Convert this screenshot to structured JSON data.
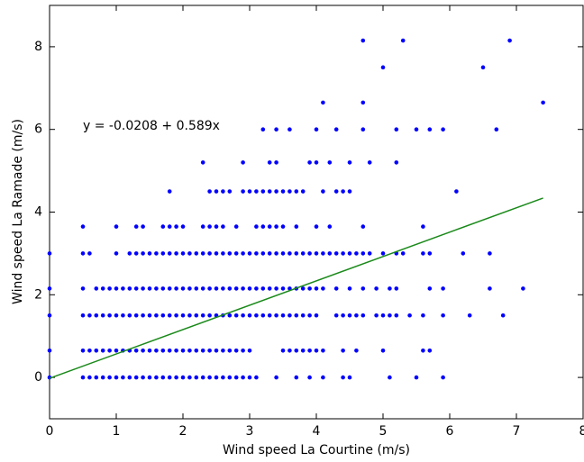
{
  "chart_data": {
    "type": "scatter",
    "xlabel": "Wind speed La Courtine (m/s)",
    "ylabel": "Wind speed La Ramade (m/s)",
    "annotation": "y = -0.0208 + 0.589x",
    "xlim": [
      0,
      8
    ],
    "ylim": [
      -1,
      9
    ],
    "xticks": [
      0,
      1,
      2,
      3,
      4,
      5,
      6,
      7,
      8
    ],
    "yticks": [
      0,
      2,
      4,
      6,
      8
    ],
    "color": "#0000ff",
    "x": [
      0,
      0.5,
      0.6,
      0.7,
      0.8,
      0.9,
      1,
      1.1,
      1.2,
      1.3,
      1.4,
      1.5,
      1.6,
      1.7,
      1.8,
      1.9,
      2,
      2.1,
      2.2,
      2.3,
      2.4,
      2.5,
      2.6,
      2.7,
      2.8,
      2.9,
      3,
      3.1,
      3.4,
      3.7,
      3.9,
      4.1,
      4.4,
      4.5,
      5.1,
      5.5,
      5.9,
      0,
      0.5,
      0.6,
      0.7,
      0.8,
      0.9,
      1,
      1.1,
      1.2,
      1.3,
      1.4,
      1.5,
      1.6,
      1.7,
      1.8,
      1.9,
      2,
      2.1,
      2.2,
      2.3,
      2.4,
      2.5,
      2.6,
      2.7,
      2.8,
      2.9,
      3,
      3.5,
      3.6,
      3.7,
      3.8,
      3.9,
      4,
      4.1,
      4.4,
      4.6,
      5,
      5.6,
      5.7,
      0,
      0.5,
      0.6,
      0.7,
      0.8,
      0.9,
      1,
      1.1,
      1.2,
      1.3,
      1.4,
      1.5,
      1.6,
      1.7,
      1.8,
      1.9,
      2,
      2.1,
      2.2,
      2.3,
      2.4,
      2.5,
      2.6,
      2.7,
      2.8,
      2.9,
      3,
      3.1,
      3.2,
      3.3,
      3.4,
      3.5,
      3.6,
      3.7,
      3.8,
      3.9,
      4,
      4.3,
      4.4,
      4.5,
      4.6,
      4.7,
      4.9,
      5,
      5.1,
      5.2,
      5.4,
      5.6,
      5.9,
      6.3,
      6.8,
      0,
      0.5,
      0.7,
      0.8,
      0.9,
      1,
      1.1,
      1.2,
      1.3,
      1.4,
      1.5,
      1.6,
      1.7,
      1.8,
      1.9,
      2,
      2.1,
      2.2,
      2.3,
      2.4,
      2.5,
      2.6,
      2.7,
      2.8,
      2.9,
      3,
      3.1,
      3.2,
      3.3,
      3.4,
      3.5,
      3.6,
      3.7,
      3.8,
      3.9,
      4,
      4.1,
      4.3,
      4.5,
      4.7,
      4.9,
      5.1,
      5.2,
      5.7,
      5.9,
      6.6,
      7.1,
      0,
      0.5,
      0.6,
      1,
      1.2,
      1.3,
      1.4,
      1.5,
      1.6,
      1.7,
      1.8,
      1.9,
      2,
      2.1,
      2.2,
      2.3,
      2.4,
      2.5,
      2.6,
      2.7,
      2.8,
      2.9,
      3,
      3.1,
      3.2,
      3.3,
      3.4,
      3.5,
      3.6,
      3.7,
      3.8,
      3.9,
      4,
      4.1,
      4.2,
      4.3,
      4.4,
      4.5,
      4.6,
      4.7,
      4.8,
      5,
      5.2,
      5.3,
      5.6,
      5.7,
      6.2,
      6.6,
      0.5,
      1,
      1.3,
      1.4,
      1.7,
      1.8,
      1.9,
      2,
      2.3,
      2.4,
      2.5,
      2.6,
      2.8,
      3.1,
      3.2,
      3.3,
      3.4,
      3.5,
      3.7,
      4,
      4.2,
      4.7,
      5.6,
      1.8,
      2.4,
      2.5,
      2.6,
      2.7,
      2.9,
      3,
      3.1,
      3.2,
      3.3,
      3.4,
      3.5,
      3.6,
      3.7,
      3.8,
      4.1,
      4.3,
      4.4,
      4.5,
      6.1,
      2.3,
      2.9,
      3.3,
      3.4,
      3.9,
      4,
      4.2,
      4.5,
      4.8,
      5.2,
      3.2,
      3.4,
      3.6,
      4,
      4.3,
      4.7,
      5.2,
      5.5,
      5.7,
      5.9,
      6.7,
      4.1,
      4.7,
      7.4,
      5,
      6.5,
      4.7,
      5.3,
      6.9
    ],
    "values": [
      0,
      0,
      0,
      0,
      0,
      0,
      0,
      0,
      0,
      0,
      0,
      0,
      0,
      0,
      0,
      0,
      0,
      0,
      0,
      0,
      0,
      0,
      0,
      0,
      0,
      0,
      0,
      0,
      0,
      0,
      0,
      0,
      0,
      0,
      0,
      0,
      0,
      0.65,
      0.65,
      0.65,
      0.65,
      0.65,
      0.65,
      0.65,
      0.65,
      0.65,
      0.65,
      0.65,
      0.65,
      0.65,
      0.65,
      0.65,
      0.65,
      0.65,
      0.65,
      0.65,
      0.65,
      0.65,
      0.65,
      0.65,
      0.65,
      0.65,
      0.65,
      0.65,
      0.65,
      0.65,
      0.65,
      0.65,
      0.65,
      0.65,
      0.65,
      0.65,
      0.65,
      0.65,
      0.65,
      0.65,
      1.5,
      1.5,
      1.5,
      1.5,
      1.5,
      1.5,
      1.5,
      1.5,
      1.5,
      1.5,
      1.5,
      1.5,
      1.5,
      1.5,
      1.5,
      1.5,
      1.5,
      1.5,
      1.5,
      1.5,
      1.5,
      1.5,
      1.5,
      1.5,
      1.5,
      1.5,
      1.5,
      1.5,
      1.5,
      1.5,
      1.5,
      1.5,
      1.5,
      1.5,
      1.5,
      1.5,
      1.5,
      1.5,
      1.5,
      1.5,
      1.5,
      1.5,
      1.5,
      1.5,
      1.5,
      1.5,
      1.5,
      1.5,
      1.5,
      1.5,
      1.5,
      2.15,
      2.15,
      2.15,
      2.15,
      2.15,
      2.15,
      2.15,
      2.15,
      2.15,
      2.15,
      2.15,
      2.15,
      2.15,
      2.15,
      2.15,
      2.15,
      2.15,
      2.15,
      2.15,
      2.15,
      2.15,
      2.15,
      2.15,
      2.15,
      2.15,
      2.15,
      2.15,
      2.15,
      2.15,
      2.15,
      2.15,
      2.15,
      2.15,
      2.15,
      2.15,
      2.15,
      2.15,
      2.15,
      2.15,
      2.15,
      2.15,
      2.15,
      2.15,
      2.15,
      2.15,
      2.15,
      2.15,
      3,
      3,
      3,
      3,
      3,
      3,
      3,
      3,
      3,
      3,
      3,
      3,
      3,
      3,
      3,
      3,
      3,
      3,
      3,
      3,
      3,
      3,
      3,
      3,
      3,
      3,
      3,
      3,
      3,
      3,
      3,
      3,
      3,
      3,
      3,
      3,
      3,
      3,
      3,
      3,
      3,
      3,
      3,
      3,
      3,
      3,
      3,
      3,
      3.65,
      3.65,
      3.65,
      3.65,
      3.65,
      3.65,
      3.65,
      3.65,
      3.65,
      3.65,
      3.65,
      3.65,
      3.65,
      3.65,
      3.65,
      3.65,
      3.65,
      3.65,
      3.65,
      3.65,
      3.65,
      3.65,
      3.65,
      4.5,
      4.5,
      4.5,
      4.5,
      4.5,
      4.5,
      4.5,
      4.5,
      4.5,
      4.5,
      4.5,
      4.5,
      4.5,
      4.5,
      4.5,
      4.5,
      4.5,
      4.5,
      4.5,
      4.5,
      5.2,
      5.2,
      5.2,
      5.2,
      5.2,
      5.2,
      5.2,
      5.2,
      5.2,
      5.2,
      6,
      6,
      6,
      6,
      6,
      6,
      6,
      6,
      6,
      6,
      6,
      6.65,
      6.65,
      6.65,
      7.5,
      7.5,
      8.15,
      8.15,
      8.15
    ],
    "fit": {
      "color": "#1a8a1a",
      "x": [
        0,
        7.4
      ],
      "values": [
        -0.0208,
        4.34
      ]
    }
  }
}
